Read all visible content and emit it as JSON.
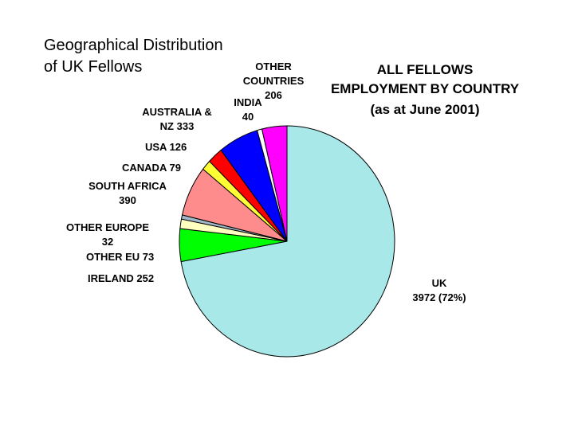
{
  "slide": {
    "title": "Geographical Distribution\nof UK Fellows"
  },
  "chart_data": {
    "type": "pie",
    "title_lines": [
      "ALL FELLOWS",
      "EMPLOYMENT BY COUNTRY",
      "(as at June 2001)"
    ],
    "slices": [
      {
        "name": "UK",
        "value": 3972,
        "color": "#a8e8e8",
        "label_lines": [
          "UK",
          "3972 (72%)"
        ]
      },
      {
        "name": "IRELAND",
        "value": 252,
        "color": "#00ff00",
        "label_lines": [
          "IRELAND  252"
        ]
      },
      {
        "name": "OTHER EU",
        "value": 73,
        "color": "#ffffc0",
        "label_lines": [
          "OTHER EU 73"
        ]
      },
      {
        "name": "OTHER EUROPE",
        "value": 32,
        "color": "#a0b8c8",
        "label_lines": [
          "OTHER EUROPE",
          "32"
        ]
      },
      {
        "name": "SOUTH AFRICA",
        "value": 390,
        "color": "#ff8c8c",
        "label_lines": [
          "SOUTH AFRICA",
          "390"
        ]
      },
      {
        "name": "CANADA",
        "value": 79,
        "color": "#ffff33",
        "label_lines": [
          "CANADA  79"
        ]
      },
      {
        "name": "USA",
        "value": 126,
        "color": "#ff0000",
        "label_lines": [
          "USA  126"
        ]
      },
      {
        "name": "AUSTRALIA & NZ",
        "value": 333,
        "color": "#0000ff",
        "label_lines": [
          "AUSTRALIA &",
          "NZ 333"
        ]
      },
      {
        "name": "INDIA",
        "value": 40,
        "color": "#ffffff",
        "label_lines": [
          "INDIA",
          "40"
        ]
      },
      {
        "name": "OTHER COUNTRIES",
        "value": 206,
        "color": "#ff00ff",
        "label_lines": [
          "OTHER",
          "COUNTRIES",
          "206"
        ]
      }
    ]
  }
}
